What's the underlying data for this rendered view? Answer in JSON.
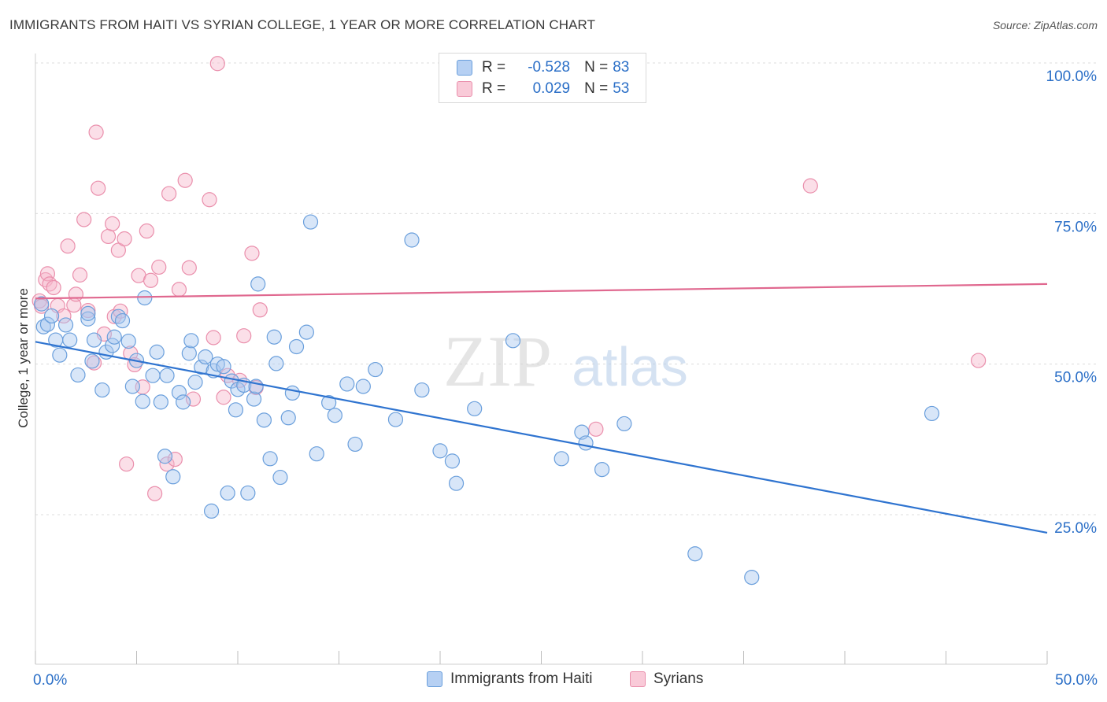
{
  "title": "IMMIGRANTS FROM HAITI VS SYRIAN COLLEGE, 1 YEAR OR MORE CORRELATION CHART",
  "source": "Source: ZipAtlas.com",
  "watermark": {
    "zip": "ZIP",
    "atlas": "atlas"
  },
  "colors": {
    "haiti_fill": "#a9c8f0",
    "haiti_stroke": "#6a9fdc",
    "haiti_line": "#2f74d0",
    "syria_fill": "#f6b8cb",
    "syria_stroke": "#ea8fac",
    "syria_line": "#e0688f",
    "axis_label": "#2b6fc7",
    "grid": "#dcdcdc"
  },
  "legend_top": {
    "rows": [
      {
        "r_label": "R =",
        "r_value": "-0.528",
        "n_label": "N =",
        "n_value": "83"
      },
      {
        "r_label": "R =",
        "r_value": "0.029",
        "n_label": "N =",
        "n_value": "53"
      }
    ]
  },
  "legend_bottom": [
    "Immigrants from Haiti",
    "Syrians"
  ],
  "chart_data": {
    "type": "scatter",
    "title": "IMMIGRANTS FROM HAITI VS SYRIAN COLLEGE, 1 YEAR OR MORE CORRELATION CHART",
    "xlabel": "",
    "ylabel": "College, 1 year or more",
    "xlim": [
      0,
      50
    ],
    "ylim": [
      0,
      102
    ],
    "x_tick_labels": [
      "0.0%",
      "50.0%"
    ],
    "y_tick_labels": [
      "100.0%",
      "75.0%",
      "50.0%",
      "25.0%"
    ],
    "y_ticks": [
      100,
      75,
      50,
      25
    ],
    "grid": true,
    "legend_placement": "bottom",
    "series": [
      {
        "name": "Immigrants from Haiti",
        "r": -0.528,
        "n": 83,
        "trend": {
          "x": [
            0,
            50
          ],
          "y": [
            53.7,
            22.0
          ]
        },
        "points": [
          [
            0.3,
            60.0
          ],
          [
            0.4,
            56.2
          ],
          [
            0.6,
            56.6
          ],
          [
            0.8,
            58.0
          ],
          [
            1.0,
            54.0
          ],
          [
            1.2,
            51.5
          ],
          [
            1.5,
            56.5
          ],
          [
            1.7,
            54.0
          ],
          [
            2.1,
            48.2
          ],
          [
            2.6,
            57.5
          ],
          [
            2.6,
            58.4
          ],
          [
            2.8,
            50.5
          ],
          [
            2.9,
            54.0
          ],
          [
            3.3,
            45.7
          ],
          [
            3.5,
            52.0
          ],
          [
            3.8,
            53.1
          ],
          [
            3.9,
            54.5
          ],
          [
            4.1,
            57.9
          ],
          [
            4.3,
            57.2
          ],
          [
            4.6,
            53.8
          ],
          [
            4.8,
            46.3
          ],
          [
            5.0,
            50.6
          ],
          [
            5.3,
            43.8
          ],
          [
            5.4,
            61.0
          ],
          [
            5.8,
            48.1
          ],
          [
            6.0,
            52.0
          ],
          [
            6.2,
            43.7
          ],
          [
            6.4,
            34.7
          ],
          [
            6.5,
            48.1
          ],
          [
            6.8,
            31.3
          ],
          [
            7.1,
            45.3
          ],
          [
            7.3,
            43.7
          ],
          [
            7.6,
            51.8
          ],
          [
            7.7,
            53.9
          ],
          [
            7.9,
            47.0
          ],
          [
            8.2,
            49.5
          ],
          [
            8.4,
            51.2
          ],
          [
            8.7,
            25.6
          ],
          [
            8.8,
            48.9
          ],
          [
            9.0,
            50.0
          ],
          [
            9.3,
            49.6
          ],
          [
            9.5,
            28.6
          ],
          [
            9.7,
            47.2
          ],
          [
            9.9,
            42.4
          ],
          [
            10.0,
            45.8
          ],
          [
            10.3,
            46.5
          ],
          [
            10.5,
            28.6
          ],
          [
            10.8,
            44.2
          ],
          [
            11.0,
            63.3
          ],
          [
            11.3,
            40.7
          ],
          [
            11.6,
            34.3
          ],
          [
            11.8,
            54.5
          ],
          [
            11.9,
            50.1
          ],
          [
            12.1,
            31.2
          ],
          [
            12.5,
            41.1
          ],
          [
            12.7,
            45.2
          ],
          [
            12.9,
            52.9
          ],
          [
            13.4,
            55.3
          ],
          [
            13.6,
            73.6
          ],
          [
            13.9,
            35.1
          ],
          [
            14.5,
            43.6
          ],
          [
            14.8,
            41.5
          ],
          [
            15.4,
            46.7
          ],
          [
            15.8,
            36.7
          ],
          [
            16.2,
            46.3
          ],
          [
            16.8,
            49.1
          ],
          [
            17.8,
            40.8
          ],
          [
            18.6,
            70.6
          ],
          [
            19.1,
            45.7
          ],
          [
            20.0,
            35.6
          ],
          [
            20.6,
            33.9
          ],
          [
            20.8,
            30.2
          ],
          [
            21.7,
            42.6
          ],
          [
            23.6,
            53.9
          ],
          [
            26.0,
            34.3
          ],
          [
            27.0,
            38.7
          ],
          [
            27.2,
            36.9
          ],
          [
            28.0,
            32.5
          ],
          [
            29.1,
            40.1
          ],
          [
            32.6,
            18.5
          ],
          [
            35.4,
            14.6
          ],
          [
            44.3,
            41.8
          ],
          [
            10.9,
            46.3
          ]
        ]
      },
      {
        "name": "Syrians",
        "r": 0.029,
        "n": 53,
        "trend": {
          "x": [
            0,
            50
          ],
          "y": [
            60.9,
            63.3
          ]
        },
        "points": [
          [
            0.2,
            60.5
          ],
          [
            0.3,
            59.6
          ],
          [
            0.5,
            64.0
          ],
          [
            0.6,
            65.0
          ],
          [
            0.7,
            63.3
          ],
          [
            0.9,
            62.7
          ],
          [
            1.1,
            59.7
          ],
          [
            1.4,
            58.0
          ],
          [
            1.6,
            69.6
          ],
          [
            1.9,
            59.8
          ],
          [
            2.0,
            61.6
          ],
          [
            2.2,
            64.8
          ],
          [
            2.4,
            74.0
          ],
          [
            2.6,
            58.9
          ],
          [
            2.9,
            50.2
          ],
          [
            3.0,
            88.5
          ],
          [
            3.1,
            79.2
          ],
          [
            3.4,
            55.0
          ],
          [
            3.6,
            71.2
          ],
          [
            3.8,
            73.3
          ],
          [
            3.9,
            57.9
          ],
          [
            4.1,
            68.9
          ],
          [
            4.2,
            58.8
          ],
          [
            4.4,
            70.8
          ],
          [
            4.5,
            33.4
          ],
          [
            4.7,
            51.8
          ],
          [
            4.9,
            49.9
          ],
          [
            5.1,
            64.7
          ],
          [
            5.3,
            46.2
          ],
          [
            5.5,
            72.1
          ],
          [
            5.7,
            63.9
          ],
          [
            5.9,
            28.5
          ],
          [
            6.1,
            66.1
          ],
          [
            6.5,
            33.4
          ],
          [
            6.6,
            78.3
          ],
          [
            6.9,
            34.2
          ],
          [
            7.1,
            62.4
          ],
          [
            7.4,
            80.5
          ],
          [
            7.6,
            66.0
          ],
          [
            7.8,
            44.2
          ],
          [
            8.6,
            77.3
          ],
          [
            8.8,
            54.4
          ],
          [
            9.0,
            99.9
          ],
          [
            9.3,
            44.5
          ],
          [
            9.5,
            48.1
          ],
          [
            10.1,
            47.3
          ],
          [
            10.3,
            54.7
          ],
          [
            10.7,
            68.4
          ],
          [
            10.9,
            46.1
          ],
          [
            11.1,
            59.0
          ],
          [
            27.7,
            39.2
          ],
          [
            38.3,
            79.6
          ],
          [
            46.6,
            50.6
          ]
        ]
      }
    ]
  }
}
